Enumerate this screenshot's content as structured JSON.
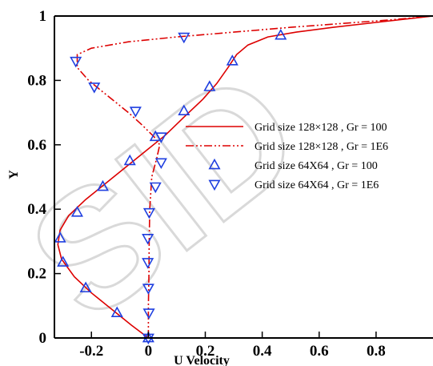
{
  "chart_data": {
    "type": "line",
    "xlabel": "U  Velocity",
    "ylabel": "Y",
    "xlim": [
      -0.33,
      1.0
    ],
    "ylim": [
      0,
      1
    ],
    "x_ticks": [
      "-0.2",
      "0",
      "0.2",
      "0.4",
      "0.6",
      "0.8"
    ],
    "x_tick_values": [
      -0.2,
      0,
      0.2,
      0.4,
      0.6,
      0.8
    ],
    "y_ticks": [
      "0",
      "0.2",
      "0.4",
      "0.6",
      "0.8",
      "1"
    ],
    "y_tick_values": [
      0,
      0.2,
      0.4,
      0.6,
      0.8,
      1
    ],
    "legend_placement": "center-right",
    "series": [
      {
        "name": "Grid size 128×128 ,  Gr = 100",
        "style": "solid",
        "color": "#dd0000",
        "points": [
          [
            0,
            0
          ],
          [
            -0.06,
            0.04
          ],
          [
            -0.13,
            0.09
          ],
          [
            -0.2,
            0.14
          ],
          [
            -0.26,
            0.19
          ],
          [
            -0.305,
            0.245
          ],
          [
            -0.318,
            0.29
          ],
          [
            -0.31,
            0.335
          ],
          [
            -0.28,
            0.38
          ],
          [
            -0.22,
            0.43
          ],
          [
            -0.15,
            0.48
          ],
          [
            -0.08,
            0.53
          ],
          [
            -0.01,
            0.58
          ],
          [
            0.06,
            0.63
          ],
          [
            0.13,
            0.69
          ],
          [
            0.19,
            0.74
          ],
          [
            0.24,
            0.79
          ],
          [
            0.28,
            0.84
          ],
          [
            0.31,
            0.88
          ],
          [
            0.35,
            0.91
          ],
          [
            0.42,
            0.935
          ],
          [
            0.52,
            0.95
          ],
          [
            0.65,
            0.965
          ],
          [
            0.8,
            0.98
          ],
          [
            0.92,
            0.992
          ],
          [
            1.0,
            1.0
          ]
        ]
      },
      {
        "name": "Grid size 128×128 ,  Gr = 1E6",
        "style": "dash-dot-dot",
        "color": "#dd0000",
        "points": [
          [
            0,
            0
          ],
          [
            0,
            0.1
          ],
          [
            0.002,
            0.2
          ],
          [
            0.003,
            0.3
          ],
          [
            0.005,
            0.4
          ],
          [
            0.012,
            0.5
          ],
          [
            0.03,
            0.56
          ],
          [
            0.04,
            0.6
          ],
          [
            0.02,
            0.625
          ],
          [
            -0.02,
            0.66
          ],
          [
            -0.07,
            0.7
          ],
          [
            -0.14,
            0.75
          ],
          [
            -0.21,
            0.8
          ],
          [
            -0.25,
            0.84
          ],
          [
            -0.25,
            0.88
          ],
          [
            -0.2,
            0.9
          ],
          [
            -0.07,
            0.92
          ],
          [
            0.1,
            0.935
          ],
          [
            0.3,
            0.95
          ],
          [
            0.5,
            0.965
          ],
          [
            0.7,
            0.978
          ],
          [
            0.85,
            0.988
          ],
          [
            1.0,
            1.0
          ]
        ]
      },
      {
        "name": "Grid size 64X64 ,  Gr = 100",
        "marker": "triangle-up",
        "color": "#1f3fe0",
        "points": [
          [
            0,
            0
          ],
          [
            -0.11,
            0.078
          ],
          [
            -0.22,
            0.155
          ],
          [
            -0.3,
            0.235
          ],
          [
            -0.31,
            0.31
          ],
          [
            -0.25,
            0.39
          ],
          [
            -0.16,
            0.47
          ],
          [
            -0.065,
            0.55
          ],
          [
            0.025,
            0.625
          ],
          [
            0.125,
            0.705
          ],
          [
            0.215,
            0.78
          ],
          [
            0.295,
            0.86
          ],
          [
            0.465,
            0.94
          ]
        ]
      },
      {
        "name": "Grid size 64X64 ,  Gr = 1E6",
        "marker": "triangle-down",
        "color": "#1f3fe0",
        "points": [
          [
            0,
            0
          ],
          [
            0.002,
            0.078
          ],
          [
            0,
            0.155
          ],
          [
            -0.002,
            0.235
          ],
          [
            -0.002,
            0.31
          ],
          [
            0.003,
            0.39
          ],
          [
            0.025,
            0.47
          ],
          [
            0.045,
            0.545
          ],
          [
            0.045,
            0.625
          ],
          [
            -0.045,
            0.705
          ],
          [
            -0.19,
            0.78
          ],
          [
            -0.255,
            0.86
          ],
          [
            0.125,
            0.935
          ]
        ]
      }
    ]
  },
  "watermark": "SID",
  "colors": {
    "line": "#dd0000",
    "marker": "#1f3fe0",
    "watermark": "#d9d9d9"
  }
}
